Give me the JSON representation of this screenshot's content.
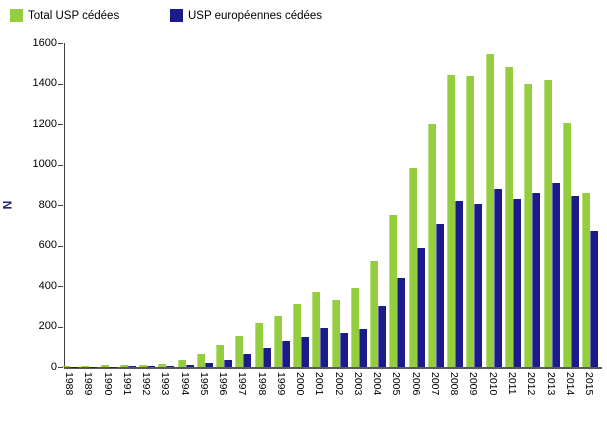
{
  "accent_colors": {
    "total_green": "#94ce3e",
    "euro_navy": "#1b1b8c",
    "axis": "#404040",
    "ylabel_color": "#1f1f7a"
  },
  "chart_data": {
    "type": "bar",
    "title": "",
    "xlabel": "",
    "ylabel": "N",
    "ylim": [
      0,
      1600
    ],
    "yticks": [
      0,
      200,
      400,
      600,
      800,
      1000,
      1200,
      1400,
      1600
    ],
    "grid": false,
    "legend_position": "top-left",
    "categories": [
      "1988",
      "1989",
      "1990",
      "1991",
      "1992",
      "1993",
      "1994",
      "1995",
      "1996",
      "1997",
      "1998",
      "1999",
      "2000",
      "2001",
      "2002",
      "2003",
      "2004",
      "2005",
      "2006",
      "2007",
      "2008",
      "2009",
      "2010",
      "2011",
      "2012",
      "2013",
      "2014",
      "2015"
    ],
    "series": [
      {
        "name": "Total USP cédées",
        "color": "#94ce3e",
        "values": [
          3,
          5,
          10,
          10,
          12,
          15,
          35,
          65,
          110,
          155,
          218,
          250,
          313,
          368,
          333,
          388,
          525,
          750,
          985,
          1200,
          1440,
          1435,
          1545,
          1480,
          1400,
          1415,
          1205,
          860
        ]
      },
      {
        "name": "USP européennes cédées",
        "color": "#1b1b8c",
        "values": [
          1,
          1,
          2,
          3,
          3,
          5,
          8,
          22,
          36,
          65,
          95,
          126,
          147,
          195,
          167,
          190,
          300,
          440,
          588,
          705,
          818,
          805,
          878,
          828,
          858,
          908,
          845,
          670
        ]
      }
    ]
  }
}
